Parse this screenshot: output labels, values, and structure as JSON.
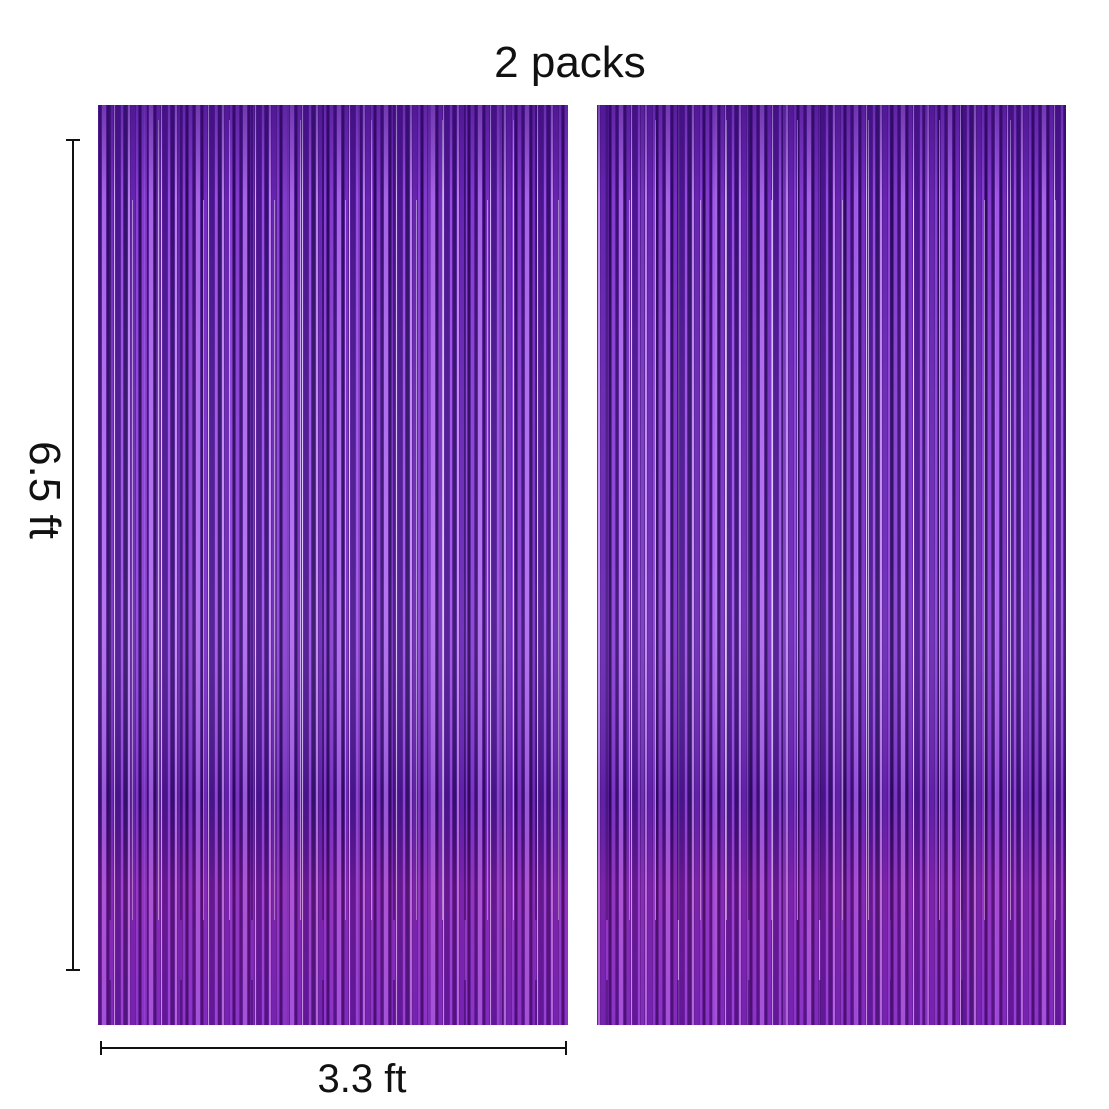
{
  "title": "2 packs",
  "height_label": "6.5 ft",
  "width_label": "3.3 ft"
}
